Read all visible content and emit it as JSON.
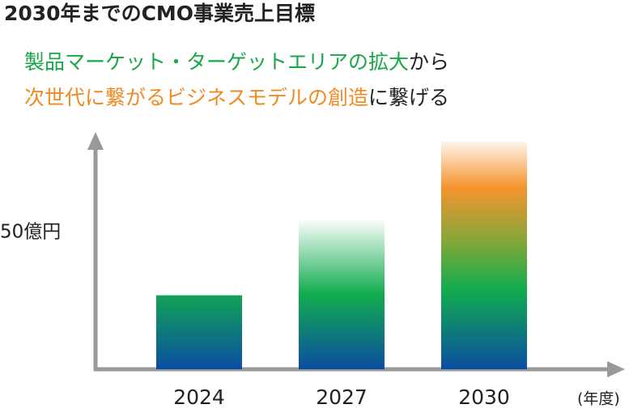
{
  "chart_data": {
    "type": "bar",
    "title": "2030年までのCMO事業売上目標",
    "subtitle_lines": [
      [
        {
          "text": "製品マーケット・ターゲットエリアの拡大",
          "color": "#1aa64a"
        },
        {
          "text": "から",
          "color": "#222222"
        }
      ],
      [
        {
          "text": "次世代に繋がるビジネスモデルの創造",
          "color": "#f08a24"
        },
        {
          "text": "に繋げる",
          "color": "#222222"
        }
      ]
    ],
    "categories": [
      "2024",
      "2027",
      "2030"
    ],
    "values": [
      27,
      55,
      83
    ],
    "x_label": "(年度)",
    "ylim": [
      0,
      86
    ],
    "yticks": [
      {
        "value": 50,
        "label": "50億円"
      }
    ],
    "grid": false
  }
}
